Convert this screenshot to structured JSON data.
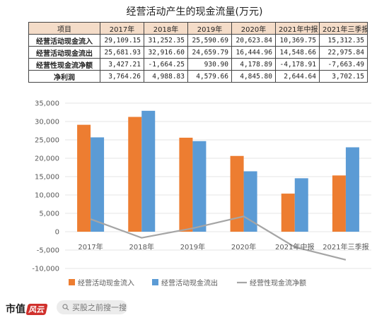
{
  "title": "经营活动产生的现金流量(万元)",
  "table": {
    "headers": [
      "项目",
      "2017年",
      "2018年",
      "2019年",
      "2020年",
      "2021年中报",
      "2021年三季报"
    ],
    "rows": [
      {
        "label": "经营活动现金流入",
        "values": [
          "29,109.15",
          "31,252.35",
          "25,590.69",
          "20,623.84",
          "10,369.75",
          "15,312.35"
        ]
      },
      {
        "label": "经营活动现金流出",
        "values": [
          "25,681.93",
          "32,916.60",
          "24,659.79",
          "16,444.96",
          "14,548.66",
          "22,975.84"
        ]
      },
      {
        "label": "经营性现金流净额",
        "values": [
          "3,427.21",
          "-1,664.25",
          "930.90",
          "4,178.89",
          "-4,178.91",
          "-7,663.49"
        ]
      },
      {
        "label": "净利润",
        "values": [
          "3,764.26",
          "4,988.83",
          "4,579.66",
          "4,845.80",
          "2,644.64",
          "3,702.15"
        ]
      }
    ]
  },
  "chart_data": {
    "type": "bar",
    "categories": [
      "2017年",
      "2018年",
      "2019年",
      "2020年",
      "2021年中报",
      "2021年三季报"
    ],
    "series": [
      {
        "name": "经营活动现金流入",
        "type": "bar",
        "color": "#ed7d31",
        "values": [
          29109.15,
          31252.35,
          25590.69,
          20623.84,
          10369.75,
          15312.35
        ]
      },
      {
        "name": "经营活动现金流出",
        "type": "bar",
        "color": "#5b9bd5",
        "values": [
          25681.93,
          32916.6,
          24659.79,
          16444.96,
          14548.66,
          22975.84
        ]
      },
      {
        "name": "经营性现金流净额",
        "type": "line",
        "color": "#a5a5a5",
        "values": [
          3427.21,
          -1664.25,
          930.9,
          4178.89,
          -4178.91,
          -7663.49
        ]
      }
    ],
    "ylim": [
      -10000,
      35000
    ],
    "yticks": [
      "35,000",
      "30,000",
      "25,000",
      "20,000",
      "15,000",
      "10,000",
      "5,000",
      "0",
      "-5,000",
      "-10,000"
    ],
    "ytick_values": [
      35000,
      30000,
      25000,
      20000,
      15000,
      10000,
      5000,
      0,
      -5000,
      -10000
    ],
    "grid": true,
    "legend_position": "bottom"
  },
  "footer": {
    "brand": "市值",
    "brand_mark": "风云",
    "search_placeholder": "买股之前搜一搜"
  }
}
